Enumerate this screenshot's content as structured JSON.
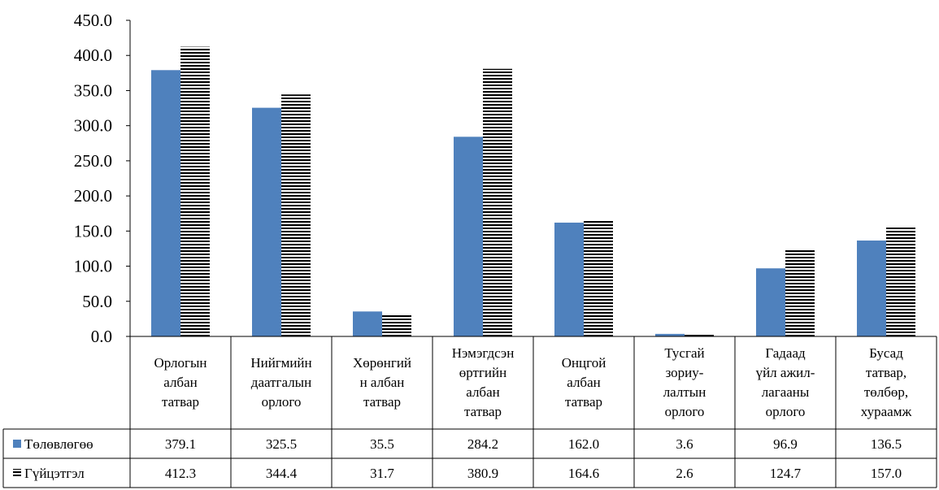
{
  "chart_data": {
    "type": "bar",
    "categories": [
      [
        "Орлогын",
        "албан",
        "татвар"
      ],
      [
        "Нийгмийн",
        "даатгалын",
        "орлого"
      ],
      [
        "Хөрөнгий",
        "н албан",
        "татвар"
      ],
      [
        "Нэмэгдсэн",
        "өртгийн",
        "албан",
        "татвар"
      ],
      [
        "Онцгой",
        "албан",
        "татвар"
      ],
      [
        "Тусгай",
        "зориу-",
        "лалтын",
        "орлого"
      ],
      [
        "Гадаад",
        "үйл ажил-",
        "лагааны",
        "орлого"
      ],
      [
        "Бусад",
        "татвар,",
        "төлбөр,",
        "хураамж"
      ]
    ],
    "series": [
      {
        "name": "Төлөвлөгөө",
        "values": [
          379.1,
          325.5,
          35.5,
          284.2,
          162.0,
          3.6,
          96.9,
          136.5
        ],
        "value_labels": [
          "379.1",
          "325.5",
          "35.5",
          "284.2",
          "162.0",
          "3.6",
          "96.9",
          "136.5"
        ],
        "fill": "solid",
        "color": "#4f81bd"
      },
      {
        "name": "Гүйцэтгэл",
        "values": [
          412.3,
          344.4,
          31.7,
          380.9,
          164.6,
          2.6,
          124.7,
          157.0
        ],
        "value_labels": [
          "412.3",
          "344.4",
          "31.7",
          "380.9",
          "164.6",
          "2.6",
          "124.7",
          "157.0"
        ],
        "fill": "horizontal-stripes",
        "color": "#000000"
      }
    ],
    "ylim": [
      0,
      450
    ],
    "yticks": [
      "0.0",
      "50.0",
      "100.0",
      "150.0",
      "200.0",
      "250.0",
      "300.0",
      "350.0",
      "400.0",
      "450.0"
    ],
    "grid": false,
    "legend": "data-table",
    "data_table": true
  }
}
